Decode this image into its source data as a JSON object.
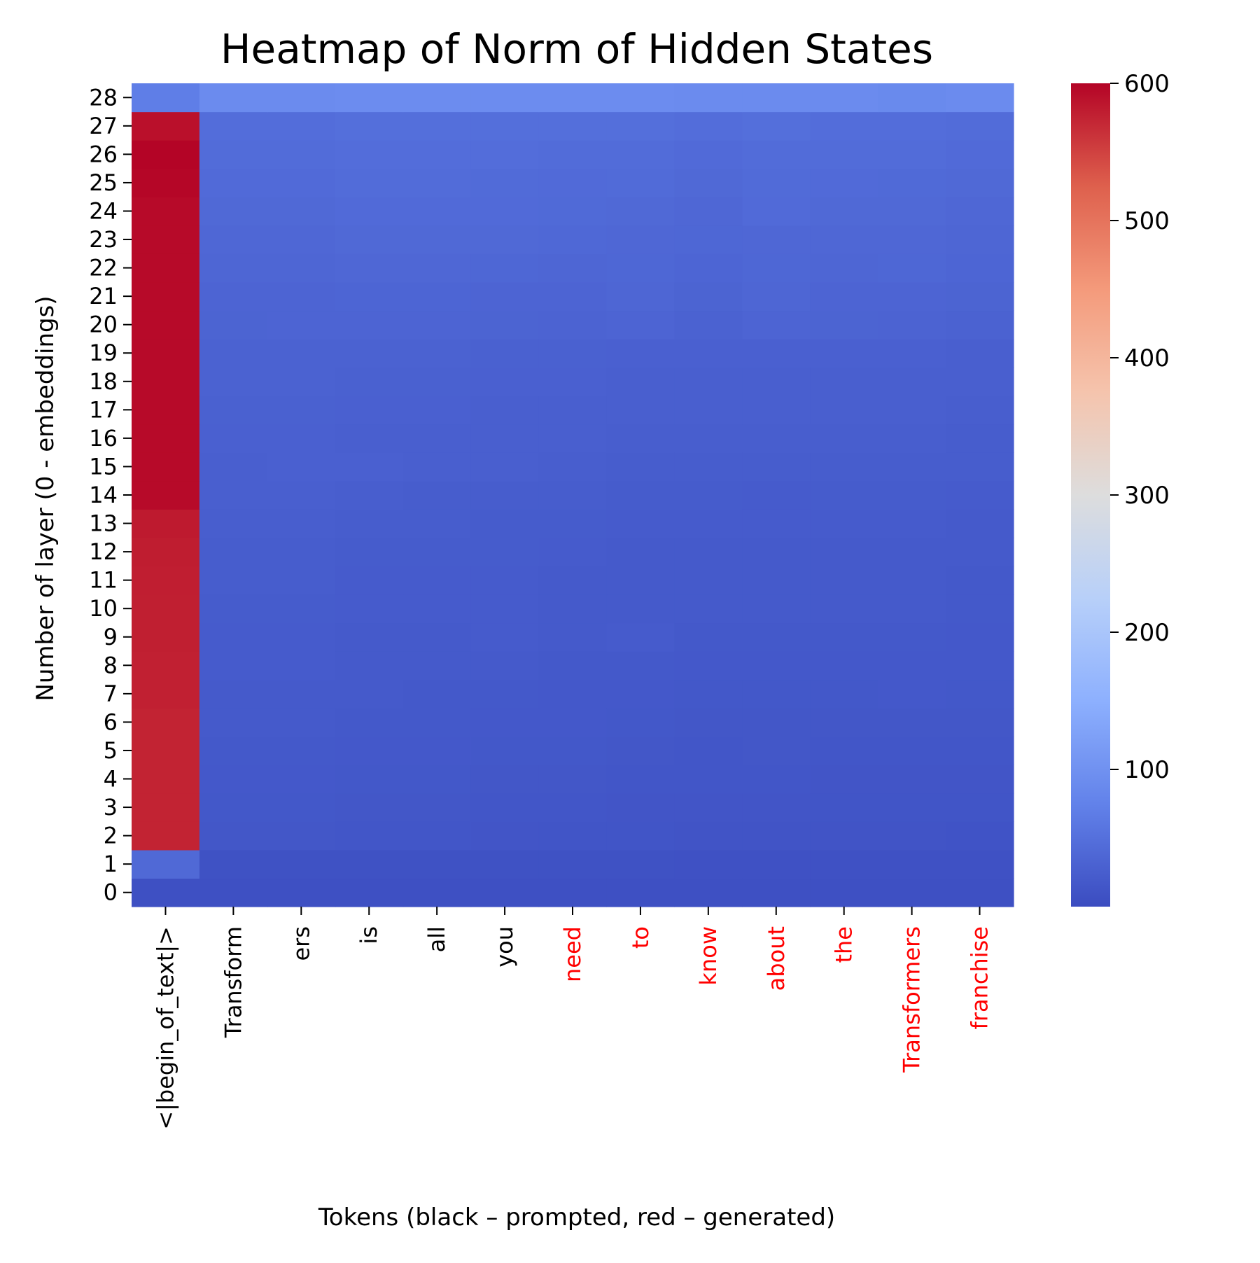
{
  "chart_data": {
    "type": "heatmap",
    "title": "Heatmap of Norm of Hidden States",
    "xlabel": "Tokens (black – prompted, red – generated)",
    "ylabel": "Number of layer (0 - embeddings)",
    "colormap": "coolwarm",
    "colorbar": {
      "min": 0,
      "max": 600,
      "ticks": [
        100,
        200,
        300,
        400,
        500,
        600
      ]
    },
    "grid": false,
    "legend": "colorbar-right",
    "prompt_color": "#000000",
    "generated_color": "#ff0000",
    "tokens": [
      {
        "label": "<|begin_of_text|>",
        "generated": false
      },
      {
        "label": "Transform",
        "generated": false
      },
      {
        "label": "ers",
        "generated": false
      },
      {
        "label": "is",
        "generated": false
      },
      {
        "label": "all",
        "generated": false
      },
      {
        "label": "you",
        "generated": false
      },
      {
        "label": "need",
        "generated": true
      },
      {
        "label": "to",
        "generated": true
      },
      {
        "label": "know",
        "generated": true
      },
      {
        "label": "about",
        "generated": true
      },
      {
        "label": "the",
        "generated": true
      },
      {
        "label": "Transformers",
        "generated": true
      },
      {
        "label": "franchise",
        "generated": true
      }
    ],
    "layers": [
      0,
      1,
      2,
      3,
      4,
      5,
      6,
      7,
      8,
      9,
      10,
      11,
      12,
      13,
      14,
      15,
      16,
      17,
      18,
      19,
      20,
      21,
      22,
      23,
      24,
      25,
      26,
      27,
      28
    ],
    "values": [
      [
        5,
        5,
        5,
        5,
        5,
        5,
        5,
        5,
        5,
        5,
        5,
        5,
        5
      ],
      [
        40,
        8,
        8,
        8,
        8,
        8,
        8,
        8,
        7,
        7,
        7,
        7,
        7
      ],
      [
        575,
        15,
        15,
        14,
        14,
        13,
        12,
        12,
        11,
        11,
        11,
        11,
        10
      ],
      [
        575,
        16,
        16,
        15,
        15,
        14,
        14,
        13,
        13,
        13,
        12,
        12,
        12
      ],
      [
        575,
        17,
        17,
        16,
        16,
        15,
        15,
        14,
        14,
        14,
        13,
        13,
        13
      ],
      [
        575,
        18,
        18,
        17,
        17,
        16,
        16,
        15,
        14,
        15,
        14,
        14,
        14
      ],
      [
        575,
        19,
        19,
        18,
        18,
        17,
        17,
        16,
        15,
        15,
        15,
        15,
        15
      ],
      [
        577,
        20,
        20,
        19,
        18,
        18,
        17,
        17,
        16,
        16,
        16,
        17,
        16
      ],
      [
        577,
        21,
        21,
        20,
        19,
        19,
        18,
        18,
        17,
        17,
        17,
        17,
        17
      ],
      [
        578,
        21,
        21,
        20,
        20,
        21,
        19,
        21,
        18,
        18,
        18,
        18,
        17
      ],
      [
        578,
        22,
        22,
        21,
        21,
        21,
        20,
        20,
        19,
        19,
        19,
        19,
        18
      ],
      [
        579,
        23,
        23,
        21,
        21,
        21,
        20,
        19,
        19,
        19,
        19,
        19,
        18
      ],
      [
        580,
        24,
        24,
        22,
        22,
        22,
        21,
        20,
        20,
        20,
        20,
        20,
        19
      ],
      [
        582,
        25,
        25,
        23,
        23,
        22,
        22,
        21,
        21,
        21,
        21,
        21,
        20
      ],
      [
        595,
        26,
        26,
        25,
        24,
        24,
        23,
        22,
        22,
        21,
        22,
        22,
        21
      ],
      [
        595,
        27,
        28,
        28,
        27,
        27,
        25,
        24,
        24,
        24,
        24,
        24,
        23
      ],
      [
        595,
        28,
        28,
        27,
        27,
        26,
        26,
        25,
        25,
        25,
        25,
        25,
        24
      ],
      [
        595,
        29,
        29,
        28,
        28,
        27,
        27,
        26,
        26,
        26,
        26,
        26,
        25
      ],
      [
        595,
        30,
        30,
        29,
        29,
        28,
        28,
        27,
        27,
        27,
        27,
        27,
        26
      ],
      [
        595,
        31,
        31,
        30,
        30,
        29,
        29,
        28,
        28,
        28,
        28,
        28,
        27
      ],
      [
        595,
        33,
        34,
        34,
        34,
        33,
        32,
        34,
        31,
        34,
        33,
        32,
        31
      ],
      [
        595,
        34,
        34,
        35,
        35,
        34,
        34,
        36,
        33,
        36,
        34,
        34,
        33
      ],
      [
        595,
        36,
        36,
        38,
        38,
        37,
        36,
        37,
        35,
        37,
        36,
        37,
        35
      ],
      [
        595,
        38,
        38,
        40,
        40,
        40,
        39,
        38,
        37,
        38,
        38,
        38,
        36
      ],
      [
        595,
        40,
        40,
        42,
        42,
        42,
        41,
        40,
        38,
        42,
        40,
        40,
        38
      ],
      [
        598,
        42,
        42,
        44,
        44,
        43,
        42,
        43,
        40,
        43,
        42,
        41,
        40
      ],
      [
        600,
        44,
        44,
        46,
        46,
        46,
        44,
        45,
        42,
        45,
        44,
        44,
        42
      ],
      [
        590,
        46,
        46,
        48,
        49,
        49,
        48,
        48,
        46,
        48,
        46,
        46,
        45
      ],
      [
        70,
        90,
        90,
        92,
        92,
        92,
        92,
        92,
        90,
        90,
        90,
        88,
        90
      ]
    ]
  }
}
